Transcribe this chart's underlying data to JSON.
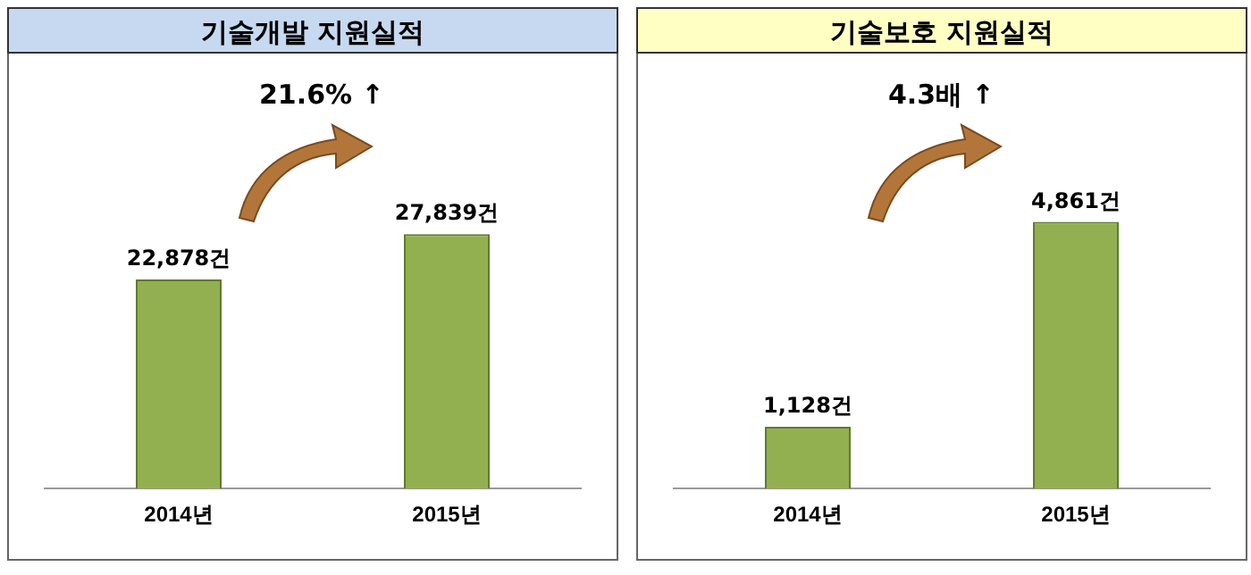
{
  "chart_data": [
    {
      "type": "bar",
      "title": "기술개발 지원실적",
      "categories": [
        "2014년",
        "2015년"
      ],
      "values": [
        22878,
        27839
      ],
      "value_labels": [
        "22,878건",
        "27,839건"
      ],
      "color": "#92b050",
      "annotations": [
        "21.6% ↑"
      ],
      "legend": false,
      "grid": false,
      "tick_labels": "x"
    },
    {
      "type": "bar",
      "title": "기술보호 지원실적",
      "categories": [
        "2014년",
        "2015년"
      ],
      "values": [
        1128,
        4861
      ],
      "value_labels": [
        "1,128건",
        "4,861건"
      ],
      "color": "#92b050",
      "annotations": [
        "4.3배 ↑"
      ],
      "legend": false,
      "grid": false,
      "tick_labels": "x"
    }
  ]
}
